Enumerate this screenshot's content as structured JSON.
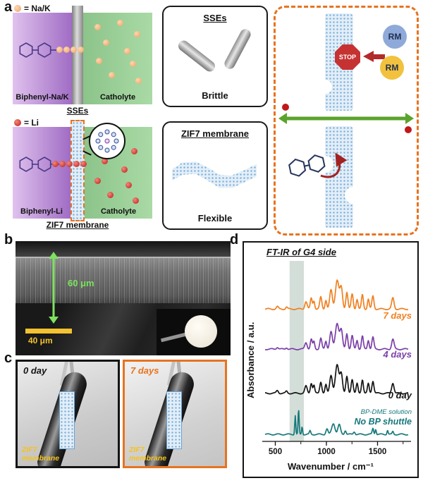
{
  "figure": {
    "panel_a": {
      "label": "a",
      "cell_na": {
        "legend": "= Na/K",
        "anode": "Biphenyl-Na/K",
        "catholyte": "Catholyte",
        "separator": "SSEs"
      },
      "cell_li": {
        "legend": "= Li",
        "anode": "Biphenyl-Li",
        "catholyte": "Catholyte",
        "separator": "ZIF7 membrane"
      },
      "box_sse": {
        "title": "SSEs",
        "caption": "Brittle"
      },
      "box_zif": {
        "title": "ZIF7 membrane",
        "caption": "Flexible"
      },
      "schematic": {
        "rm_top": "RM",
        "rm_bottom": "RM",
        "stop": "STOP"
      }
    },
    "panel_b": {
      "label": "b",
      "thickness": "60 μm",
      "scale_bar": "40 μm"
    },
    "panel_c": {
      "label": "c",
      "photo_0day": {
        "title": "0 day",
        "membrane_label": "ZIF7 membrane"
      },
      "photo_7days": {
        "title": "7 days",
        "membrane_label": "ZIF7 membrane"
      }
    },
    "panel_d": {
      "label": "d"
    }
  },
  "chart_data": {
    "type": "line",
    "title": "FT-IR of G4 side",
    "xlabel": "Wavenumber / cm⁻¹",
    "ylabel": "Absorbance / a.u.",
    "x_range": [
      400,
      1800
    ],
    "x_ticks": [
      500,
      1000,
      1500
    ],
    "x_minor_ticks": [
      750,
      1250,
      1750
    ],
    "y_range": [
      0,
      9
    ],
    "grid": false,
    "legend_position": "right-inline",
    "highlight_band_cm": [
      640,
      780
    ],
    "highlight_color": "#a9bdb1",
    "series": [
      {
        "name": "7 days",
        "color": "#f08020",
        "baseline_offset": 6.6,
        "peaks_cm_height_width": [
          [
            520,
            0.12,
            14
          ],
          [
            610,
            0.1,
            12
          ],
          [
            800,
            0.38,
            16
          ],
          [
            852,
            0.55,
            13
          ],
          [
            878,
            0.42,
            11
          ],
          [
            945,
            0.6,
            14
          ],
          [
            995,
            0.45,
            12
          ],
          [
            1045,
            0.95,
            18
          ],
          [
            1105,
            1.45,
            24
          ],
          [
            1145,
            1.05,
            18
          ],
          [
            1200,
            0.85,
            14
          ],
          [
            1252,
            0.75,
            14
          ],
          [
            1300,
            0.5,
            12
          ],
          [
            1352,
            0.72,
            13
          ],
          [
            1410,
            0.5,
            12
          ],
          [
            1455,
            0.65,
            14
          ],
          [
            1650,
            0.55,
            16
          ]
        ]
      },
      {
        "name": "4 days",
        "color": "#7a3fa8",
        "baseline_offset": 4.6,
        "peaks_cm_height_width": [
          [
            520,
            0.1,
            14
          ],
          [
            610,
            0.08,
            12
          ],
          [
            800,
            0.34,
            16
          ],
          [
            852,
            0.5,
            13
          ],
          [
            878,
            0.38,
            11
          ],
          [
            945,
            0.55,
            14
          ],
          [
            995,
            0.4,
            12
          ],
          [
            1045,
            0.88,
            18
          ],
          [
            1105,
            1.3,
            24
          ],
          [
            1145,
            0.95,
            18
          ],
          [
            1200,
            0.78,
            14
          ],
          [
            1252,
            0.68,
            14
          ],
          [
            1300,
            0.45,
            12
          ],
          [
            1352,
            0.66,
            13
          ],
          [
            1410,
            0.45,
            12
          ],
          [
            1455,
            0.6,
            14
          ],
          [
            1650,
            0.5,
            16
          ]
        ]
      },
      {
        "name": "0 day",
        "color": "#141414",
        "baseline_offset": 2.4,
        "peaks_cm_height_width": [
          [
            520,
            0.14,
            14
          ],
          [
            610,
            0.1,
            12
          ],
          [
            800,
            0.36,
            16
          ],
          [
            852,
            0.52,
            13
          ],
          [
            878,
            0.4,
            11
          ],
          [
            945,
            0.58,
            14
          ],
          [
            995,
            0.42,
            12
          ],
          [
            1045,
            0.92,
            18
          ],
          [
            1105,
            1.4,
            24
          ],
          [
            1145,
            1.0,
            18
          ],
          [
            1200,
            0.82,
            14
          ],
          [
            1252,
            0.72,
            14
          ],
          [
            1300,
            0.48,
            12
          ],
          [
            1352,
            0.7,
            13
          ],
          [
            1410,
            0.48,
            12
          ],
          [
            1455,
            0.62,
            14
          ],
          [
            1650,
            0.52,
            16
          ]
        ]
      },
      {
        "name": "No BP shuttle",
        "sublabel": "BP-DME solution",
        "color": "#17787b",
        "baseline_offset": 0.35,
        "peaks_cm_height_width": [
          [
            695,
            0.95,
            7
          ],
          [
            728,
            1.25,
            7
          ],
          [
            762,
            0.4,
            7
          ],
          [
            840,
            0.18,
            9
          ],
          [
            1005,
            0.28,
            14
          ],
          [
            1068,
            0.55,
            22
          ],
          [
            1125,
            0.48,
            18
          ],
          [
            1185,
            0.2,
            12
          ],
          [
            1272,
            0.14,
            12
          ],
          [
            1455,
            0.3,
            10
          ],
          [
            1482,
            0.28,
            8
          ],
          [
            1598,
            0.22,
            8
          ],
          [
            1650,
            0.14,
            9
          ]
        ]
      }
    ]
  }
}
